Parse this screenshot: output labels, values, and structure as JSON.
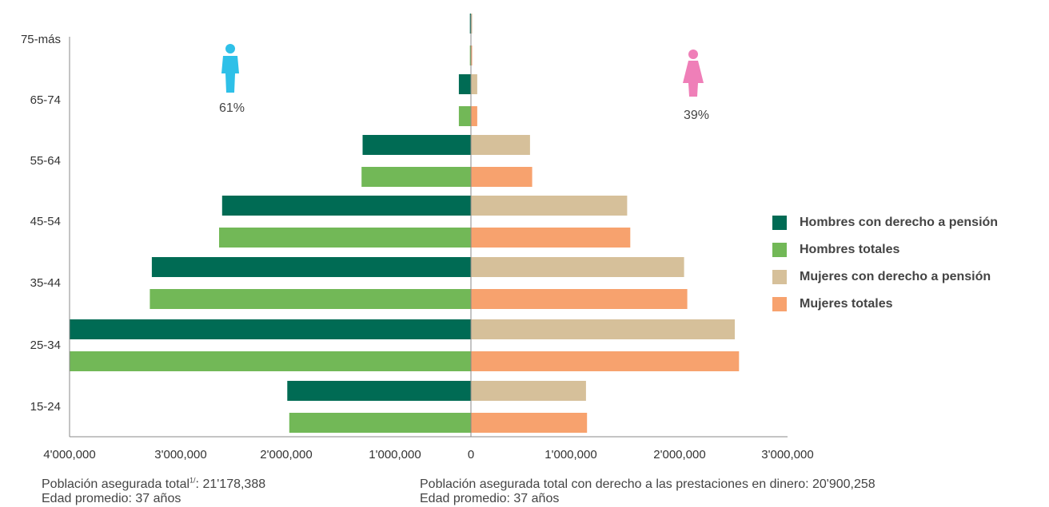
{
  "chart_data": {
    "type": "bar",
    "orientation": "horizontal",
    "layout": "population-pyramid",
    "categories": [
      "15-24",
      "25-34",
      "35-44",
      "45-54",
      "55-64",
      "65-74",
      "75-más"
    ],
    "series": [
      {
        "name": "Hombres con derecho a pensión",
        "side": "left",
        "color": "#006b54",
        "values": [
          1830000,
          4000000,
          3180000,
          2480000,
          1080000,
          120000,
          10000
        ]
      },
      {
        "name": "Hombres totales",
        "side": "left",
        "color": "#72b857",
        "values": [
          1810000,
          4000000,
          3200000,
          2510000,
          1090000,
          120000,
          10000
        ]
      },
      {
        "name": "Mujeres con derecho a pensión",
        "side": "right",
        "color": "#d6c09a",
        "values": [
          1090000,
          2500000,
          2020000,
          1480000,
          560000,
          60000,
          10000
        ]
      },
      {
        "name": "Mujeres totales",
        "side": "right",
        "color": "#f7a26e",
        "values": [
          1100000,
          2540000,
          2050000,
          1510000,
          580000,
          60000,
          10000
        ]
      }
    ],
    "x_ticks": [
      "4'000,000",
      "3'000,000",
      "2'000,000",
      "1'000,000",
      "0",
      "1'000,000",
      "2'000,000",
      "3'000,000"
    ],
    "xlim_left": [
      0,
      4000000
    ],
    "xlim_right": [
      0,
      3000000
    ],
    "legend_position": "right",
    "grid": false,
    "annotations": {
      "male_pct": "61%",
      "female_pct": "39%",
      "male_icon": "man-icon",
      "female_icon": "woman-icon",
      "male_icon_color": "#2ec0e8",
      "female_icon_color": "#ef7fb8"
    }
  },
  "footer": {
    "left_line1": "Población asegurada total",
    "left_sup": "1/",
    "left_line1_value": ": 21'178,388",
    "left_line2": "Edad promedio: 37 años",
    "right_line1": "Población asegurada total con derecho a las prestaciones en dinero: 20'900,258",
    "right_line2": "Edad promedio: 37 años"
  }
}
